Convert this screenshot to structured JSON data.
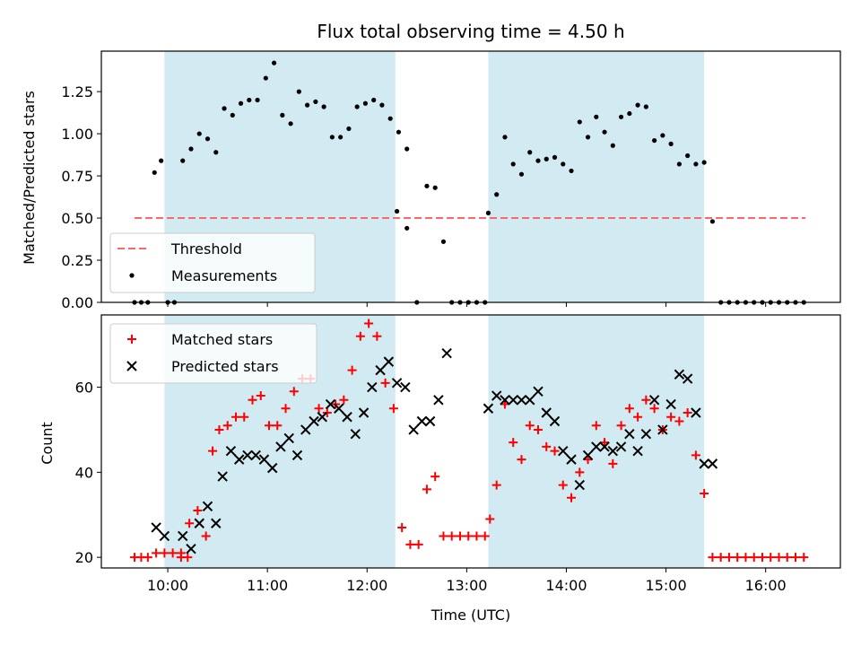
{
  "colors": {
    "shade": "#add8e6",
    "threshold": "#ff6666",
    "matched": "#ff0000",
    "predicted": "#000000",
    "measurement": "#000000"
  },
  "chart_data": [
    {
      "type": "scatter",
      "title": "Flux total observing time = 4.50 h",
      "xlabel": "",
      "ylabel": "Matched/Predicted stars",
      "xlim": [
        "09:20",
        "16:45"
      ],
      "ylim": [
        0,
        1.49
      ],
      "x_ticks": [
        "10:00",
        "11:00",
        "12:00",
        "13:00",
        "14:00",
        "15:00",
        "16:00"
      ],
      "y_ticks": [
        "0.00",
        "0.25",
        "0.50",
        "0.75",
        "1.00",
        "1.25"
      ],
      "y_tick_values": [
        0,
        0.25,
        0.5,
        0.75,
        1.0,
        1.25
      ],
      "shaded_intervals": [
        [
          "09:58",
          "12:17"
        ],
        [
          "13:13",
          "15:23"
        ]
      ],
      "legend": {
        "position": "lower left",
        "entries": [
          "Threshold",
          "Measurements"
        ]
      },
      "threshold": {
        "name": "Threshold",
        "y": 0.5,
        "x_range": [
          "09:40",
          "16:24"
        ],
        "style": "dashed"
      },
      "series": [
        {
          "name": "Measurements",
          "marker": "dot",
          "points": [
            [
              "09:40",
              0
            ],
            [
              "09:44",
              0
            ],
            [
              "09:48",
              0
            ],
            [
              "09:52",
              0.77
            ],
            [
              "09:56",
              0.84
            ],
            [
              "10:00",
              0
            ],
            [
              "10:04",
              0
            ],
            [
              "10:09",
              0.84
            ],
            [
              "10:14",
              0.91
            ],
            [
              "10:19",
              1.0
            ],
            [
              "10:24",
              0.97
            ],
            [
              "10:29",
              0.89
            ],
            [
              "10:34",
              1.15
            ],
            [
              "10:39",
              1.11
            ],
            [
              "10:44",
              1.18
            ],
            [
              "10:49",
              1.2
            ],
            [
              "10:54",
              1.2
            ],
            [
              "10:59",
              1.33
            ],
            [
              "11:04",
              1.42
            ],
            [
              "11:09",
              1.11
            ],
            [
              "11:14",
              1.06
            ],
            [
              "11:19",
              1.25
            ],
            [
              "11:24",
              1.17
            ],
            [
              "11:29",
              1.19
            ],
            [
              "11:34",
              1.16
            ],
            [
              "11:39",
              0.98
            ],
            [
              "11:44",
              0.98
            ],
            [
              "11:49",
              1.03
            ],
            [
              "11:54",
              1.16
            ],
            [
              "11:59",
              1.18
            ],
            [
              "12:04",
              1.2
            ],
            [
              "12:09",
              1.17
            ],
            [
              "12:14",
              1.09
            ],
            [
              "12:19",
              1.01
            ],
            [
              "12:24",
              0.91
            ],
            [
              "12:18",
              0.54
            ],
            [
              "12:24",
              0.44
            ],
            [
              "12:30",
              0
            ],
            [
              "12:36",
              0.69
            ],
            [
              "12:41",
              0.68
            ],
            [
              "12:46",
              0.36
            ],
            [
              "12:51",
              0
            ],
            [
              "12:56",
              0
            ],
            [
              "13:01",
              0
            ],
            [
              "13:06",
              0
            ],
            [
              "13:11",
              0
            ],
            [
              "13:13",
              0.53
            ],
            [
              "13:18",
              0.64
            ],
            [
              "13:23",
              0.98
            ],
            [
              "13:28",
              0.82
            ],
            [
              "13:33",
              0.76
            ],
            [
              "13:38",
              0.89
            ],
            [
              "13:43",
              0.84
            ],
            [
              "13:48",
              0.85
            ],
            [
              "13:53",
              0.86
            ],
            [
              "13:58",
              0.82
            ],
            [
              "14:03",
              0.78
            ],
            [
              "14:08",
              1.07
            ],
            [
              "14:13",
              0.98
            ],
            [
              "14:18",
              1.1
            ],
            [
              "14:23",
              1.01
            ],
            [
              "14:28",
              0.93
            ],
            [
              "14:33",
              1.1
            ],
            [
              "14:38",
              1.12
            ],
            [
              "14:43",
              1.17
            ],
            [
              "14:48",
              1.16
            ],
            [
              "14:53",
              0.96
            ],
            [
              "14:58",
              0.99
            ],
            [
              "15:03",
              0.94
            ],
            [
              "15:08",
              0.82
            ],
            [
              "15:13",
              0.87
            ],
            [
              "15:18",
              0.82
            ],
            [
              "15:23",
              0.83
            ],
            [
              "15:28",
              0.48
            ],
            [
              "15:33",
              0
            ],
            [
              "15:38",
              0
            ],
            [
              "15:43",
              0
            ],
            [
              "15:48",
              0
            ],
            [
              "15:53",
              0
            ],
            [
              "15:58",
              0
            ],
            [
              "16:03",
              0
            ],
            [
              "16:08",
              0
            ],
            [
              "16:13",
              0
            ],
            [
              "16:18",
              0
            ],
            [
              "16:23",
              0
            ]
          ]
        }
      ]
    },
    {
      "type": "scatter",
      "title": "",
      "xlabel": "Time (UTC)",
      "ylabel": "Count",
      "xlim": [
        "09:20",
        "16:45"
      ],
      "ylim": [
        17.5,
        77
      ],
      "x_ticks": [
        "10:00",
        "11:00",
        "12:00",
        "13:00",
        "14:00",
        "15:00",
        "16:00"
      ],
      "y_ticks": [
        "20",
        "40",
        "60"
      ],
      "y_tick_values": [
        20,
        40,
        60
      ],
      "shaded_intervals": [
        [
          "09:58",
          "12:17"
        ],
        [
          "13:13",
          "15:23"
        ]
      ],
      "legend": {
        "position": "upper left",
        "entries": [
          "Matched stars",
          "Predicted stars"
        ]
      },
      "series": [
        {
          "name": "Matched stars",
          "marker": "plus",
          "points": [
            [
              "09:40",
              20
            ],
            [
              "09:44",
              20
            ],
            [
              "09:48",
              20
            ],
            [
              "09:53",
              21
            ],
            [
              "09:58",
              21
            ],
            [
              "10:03",
              21
            ],
            [
              "10:08",
              21
            ],
            [
              "10:12",
              20
            ],
            [
              "10:08",
              20
            ],
            [
              "10:13",
              28
            ],
            [
              "10:18",
              31
            ],
            [
              "10:23",
              25
            ],
            [
              "10:27",
              45
            ],
            [
              "10:31",
              50
            ],
            [
              "10:36",
              51
            ],
            [
              "10:41",
              53
            ],
            [
              "10:46",
              53
            ],
            [
              "10:51",
              57
            ],
            [
              "10:56",
              58
            ],
            [
              "11:01",
              51
            ],
            [
              "11:06",
              51
            ],
            [
              "11:11",
              55
            ],
            [
              "11:16",
              59
            ],
            [
              "11:21",
              62
            ],
            [
              "11:26",
              62
            ],
            [
              "11:31",
              55
            ],
            [
              "11:36",
              54
            ],
            [
              "11:41",
              56
            ],
            [
              "11:46",
              57
            ],
            [
              "11:51",
              64
            ],
            [
              "11:56",
              72
            ],
            [
              "12:01",
              75
            ],
            [
              "12:06",
              72
            ],
            [
              "12:11",
              61
            ],
            [
              "12:16",
              55
            ],
            [
              "12:21",
              27
            ],
            [
              "12:26",
              23
            ],
            [
              "12:31",
              23
            ],
            [
              "12:36",
              36
            ],
            [
              "12:41",
              39
            ],
            [
              "12:46",
              25
            ],
            [
              "12:51",
              25
            ],
            [
              "12:56",
              25
            ],
            [
              "13:01",
              25
            ],
            [
              "13:06",
              25
            ],
            [
              "13:11",
              25
            ],
            [
              "13:14",
              29
            ],
            [
              "13:18",
              37
            ],
            [
              "13:23",
              56
            ],
            [
              "13:28",
              47
            ],
            [
              "13:33",
              43
            ],
            [
              "13:38",
              51
            ],
            [
              "13:43",
              50
            ],
            [
              "13:48",
              46
            ],
            [
              "13:53",
              45
            ],
            [
              "13:58",
              37
            ],
            [
              "14:03",
              34
            ],
            [
              "14:08",
              40
            ],
            [
              "14:13",
              43
            ],
            [
              "14:18",
              51
            ],
            [
              "14:23",
              47
            ],
            [
              "14:28",
              42
            ],
            [
              "14:33",
              51
            ],
            [
              "14:38",
              55
            ],
            [
              "14:43",
              53
            ],
            [
              "14:48",
              57
            ],
            [
              "14:53",
              55
            ],
            [
              "14:58",
              50
            ],
            [
              "15:03",
              53
            ],
            [
              "15:08",
              52
            ],
            [
              "15:13",
              54
            ],
            [
              "15:18",
              44
            ],
            [
              "15:23",
              35
            ],
            [
              "15:28",
              20
            ],
            [
              "15:33",
              20
            ],
            [
              "15:38",
              20
            ],
            [
              "15:43",
              20
            ],
            [
              "15:48",
              20
            ],
            [
              "15:53",
              20
            ],
            [
              "15:58",
              20
            ],
            [
              "16:03",
              20
            ],
            [
              "16:08",
              20
            ],
            [
              "16:13",
              20
            ],
            [
              "16:18",
              20
            ],
            [
              "16:23",
              20
            ]
          ]
        },
        {
          "name": "Predicted stars",
          "marker": "x",
          "points": [
            [
              "09:53",
              27
            ],
            [
              "09:58",
              25
            ],
            [
              "10:09",
              25
            ],
            [
              "10:14",
              22
            ],
            [
              "10:19",
              28
            ],
            [
              "10:24",
              32
            ],
            [
              "10:29",
              28
            ],
            [
              "10:33",
              39
            ],
            [
              "10:38",
              45
            ],
            [
              "10:43",
              43
            ],
            [
              "10:48",
              44
            ],
            [
              "10:53",
              44
            ],
            [
              "10:58",
              43
            ],
            [
              "11:03",
              41
            ],
            [
              "11:08",
              46
            ],
            [
              "11:13",
              48
            ],
            [
              "11:18",
              44
            ],
            [
              "11:23",
              50
            ],
            [
              "11:28",
              52
            ],
            [
              "11:33",
              53
            ],
            [
              "11:38",
              56
            ],
            [
              "11:43",
              55
            ],
            [
              "11:48",
              53
            ],
            [
              "11:53",
              49
            ],
            [
              "11:58",
              54
            ],
            [
              "12:03",
              60
            ],
            [
              "12:08",
              64
            ],
            [
              "12:13",
              66
            ],
            [
              "12:18",
              61
            ],
            [
              "12:23",
              60
            ],
            [
              "12:28",
              50
            ],
            [
              "12:33",
              52
            ],
            [
              "12:38",
              52
            ],
            [
              "12:43",
              57
            ],
            [
              "12:48",
              68
            ],
            [
              "13:13",
              55
            ],
            [
              "13:18",
              58
            ],
            [
              "13:23",
              57
            ],
            [
              "13:28",
              57
            ],
            [
              "13:33",
              57
            ],
            [
              "13:38",
              57
            ],
            [
              "13:43",
              59
            ],
            [
              "13:48",
              54
            ],
            [
              "13:53",
              52
            ],
            [
              "13:58",
              45
            ],
            [
              "14:03",
              43
            ],
            [
              "14:08",
              37
            ],
            [
              "14:13",
              44
            ],
            [
              "14:18",
              46
            ],
            [
              "14:23",
              46
            ],
            [
              "14:28",
              45
            ],
            [
              "14:33",
              46
            ],
            [
              "14:38",
              49
            ],
            [
              "14:43",
              45
            ],
            [
              "14:48",
              49
            ],
            [
              "14:53",
              57
            ],
            [
              "14:58",
              50
            ],
            [
              "15:03",
              56
            ],
            [
              "15:08",
              63
            ],
            [
              "15:13",
              62
            ],
            [
              "15:18",
              54
            ],
            [
              "15:23",
              42
            ],
            [
              "15:28",
              42
            ]
          ]
        }
      ]
    }
  ]
}
